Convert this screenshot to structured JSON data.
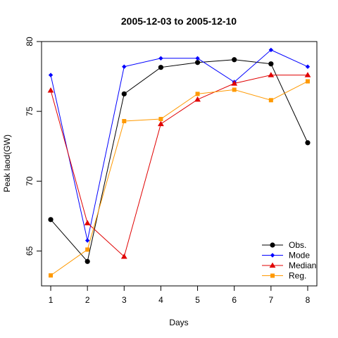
{
  "chart_data": {
    "type": "line",
    "title": "2005-12-03 to 2005-12-10",
    "xlabel": "Days",
    "ylabel": "Peak laod(GW)",
    "x": [
      1,
      2,
      3,
      4,
      5,
      6,
      7,
      8
    ],
    "xlim": [
      0.75,
      8.25
    ],
    "ylim": [
      62.5,
      80
    ],
    "xticks": [
      "1",
      "2",
      "3",
      "4",
      "5",
      "6",
      "7",
      "8"
    ],
    "yticks": [
      65,
      70,
      75,
      80
    ],
    "grid": false,
    "legend_position": "bottom-right",
    "series": [
      {
        "name": "Obs.",
        "color": "#000000",
        "marker": "circle",
        "values": [
          67.25,
          64.25,
          76.25,
          78.15,
          78.5,
          78.7,
          78.4,
          72.75
        ]
      },
      {
        "name": "Mode",
        "color": "#0000ff",
        "marker": "diamond",
        "values": [
          77.6,
          65.75,
          78.2,
          78.8,
          78.8,
          77.1,
          79.4,
          78.2
        ]
      },
      {
        "name": "Median",
        "color": "#e00000",
        "marker": "triangle",
        "values": [
          76.5,
          67.0,
          64.6,
          74.1,
          75.85,
          77.0,
          77.6,
          77.6
        ]
      },
      {
        "name": "Reg.",
        "color": "#ff9900",
        "marker": "square",
        "values": [
          63.25,
          65.1,
          74.3,
          74.45,
          76.25,
          76.55,
          75.8,
          77.15
        ]
      }
    ]
  }
}
